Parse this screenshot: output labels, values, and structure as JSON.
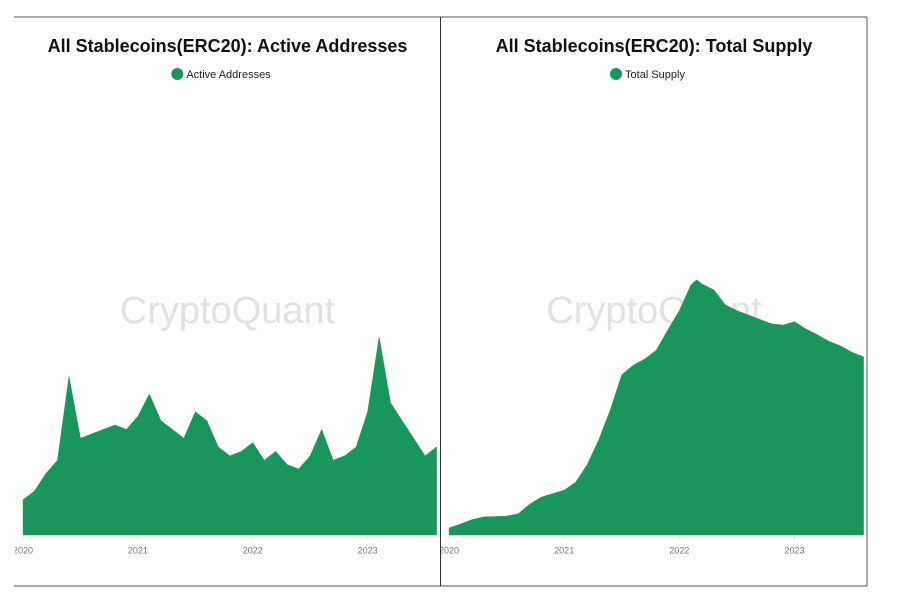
{
  "chart_data": [
    {
      "type": "area",
      "title": "All Stablecoins(ERC20): Active Addresses",
      "watermark": "CryptoQuant",
      "x": [
        2020.0,
        2020.1,
        2020.2,
        2020.3,
        2020.4,
        2020.5,
        2020.6,
        2020.7,
        2020.8,
        2020.9,
        2021.0,
        2021.1,
        2021.2,
        2021.3,
        2021.4,
        2021.5,
        2021.6,
        2021.7,
        2021.8,
        2021.9,
        2022.0,
        2022.1,
        2022.2,
        2022.3,
        2022.4,
        2022.5,
        2022.6,
        2022.7,
        2022.8,
        2022.9,
        2023.0,
        2023.1,
        2023.2,
        2023.3,
        2023.4,
        2023.5,
        2023.6
      ],
      "series": [
        {
          "name": "Active Addresses",
          "color": "#19965e",
          "values": [
            8,
            10,
            14,
            17,
            36,
            22,
            23,
            24,
            25,
            24,
            27,
            32,
            26,
            24,
            22,
            28,
            26,
            20,
            18,
            19,
            21,
            17,
            19,
            16,
            15,
            18,
            24,
            17,
            18,
            20,
            28,
            45,
            30,
            26,
            22,
            18,
            20
          ]
        }
      ],
      "xlim": [
        2019.93,
        2023.63
      ],
      "xticks": [
        2020,
        2021,
        2022,
        2023
      ],
      "ylim": [
        0,
        100
      ]
    },
    {
      "type": "area",
      "title": "All Stablecoins(ERC20): Total Supply",
      "watermark": "CryptoQuant",
      "x": [
        2020.0,
        2020.1,
        2020.2,
        2020.3,
        2020.5,
        2020.6,
        2020.7,
        2020.8,
        2021.0,
        2021.1,
        2021.2,
        2021.3,
        2021.4,
        2021.5,
        2021.6,
        2021.7,
        2021.8,
        2021.9,
        2022.0,
        2022.1,
        2022.15,
        2022.2,
        2022.3,
        2022.4,
        2022.5,
        2022.6,
        2022.7,
        2022.8,
        2022.9,
        2023.0,
        2023.1,
        2023.2,
        2023.3,
        2023.4,
        2023.5,
        2023.6
      ],
      "series": [
        {
          "name": "Total Supply",
          "color": "#19965e",
          "values": [
            1.6,
            2.5,
            3.5,
            4.1,
            4.3,
            4.8,
            7,
            8.6,
            10.2,
            12,
            16,
            21.6,
            28.4,
            36.4,
            38.6,
            40,
            42,
            46.6,
            51,
            56.8,
            58,
            57,
            55.7,
            52.3,
            51,
            50,
            49,
            48,
            47.7,
            48.5,
            46.8,
            45.5,
            44,
            43,
            41.5,
            40.5
          ]
        }
      ],
      "xlim": [
        2019.93,
        2023.63
      ],
      "xticks": [
        2020,
        2021,
        2022,
        2023
      ],
      "ylim": [
        0,
        100
      ]
    }
  ]
}
